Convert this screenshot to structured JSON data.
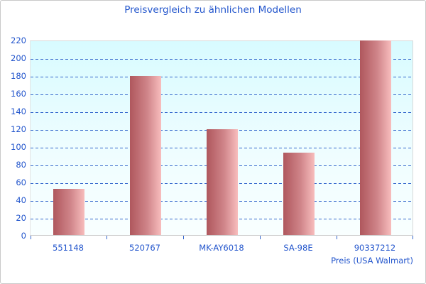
{
  "window": {
    "background": "#ffffff",
    "border_color": "#c9c9c9"
  },
  "chart_data": {
    "type": "bar",
    "title": "Preisvergleich zu ähnlichen Modellen",
    "categories": [
      "551148",
      "520767",
      "MK-AY6018",
      "SA-98E",
      "90337212"
    ],
    "values": [
      52,
      179,
      119,
      93,
      219
    ],
    "xlabel": "Preis (USA Walmart)",
    "ylabel": "",
    "ylim": [
      0,
      220
    ],
    "ytick_step": 20,
    "yticks": [
      0,
      20,
      40,
      60,
      80,
      100,
      120,
      140,
      160,
      180,
      200,
      220
    ],
    "grid": "horizontal-dashed",
    "legend": "none",
    "colors": {
      "title_text": "#2255cc",
      "axis_text": "#2255cc",
      "gridline": "#3366cc",
      "tick": "#3366cc",
      "bar_gradient_left": "#af575d",
      "bar_gradient_right": "#f8bdbd",
      "plot_bg_top": "#d8fbff",
      "plot_bg_bottom": "#f9ffff",
      "plot_border": "#d8d8d8"
    }
  }
}
